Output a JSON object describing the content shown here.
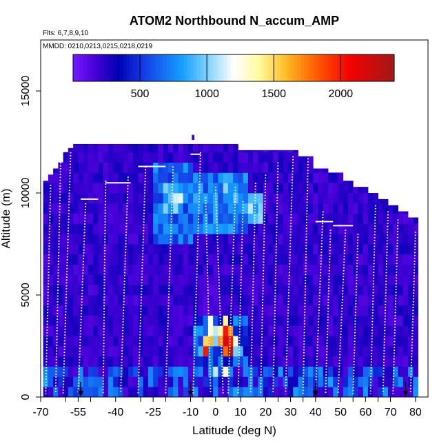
{
  "chart_data": {
    "type": "heatmap",
    "title": "ATOM2 Northbound N_accum_AMP",
    "flights_note": "Flts: 6,7,8,9,10",
    "dates_note": "MMDD: 0210,0213,0215,0218,0219",
    "xlabel": "Latitude (deg N)",
    "ylabel": "Altitude (m)",
    "xlim": [
      -70,
      85
    ],
    "ylim": [
      0,
      17500
    ],
    "x_ticks": [
      {
        "value": -70,
        "label": "-70"
      },
      {
        "value": -60,
        "label": ""
      },
      {
        "value": -55,
        "label": "-55"
      },
      {
        "value": -50,
        "label": ""
      },
      {
        "value": -40,
        "label": "-40"
      },
      {
        "value": -30,
        "label": ""
      },
      {
        "value": -25,
        "label": "-25"
      },
      {
        "value": -20,
        "label": ""
      },
      {
        "value": -10,
        "label": "-10"
      },
      {
        "value": -5,
        "label": ""
      },
      {
        "value": 0,
        "label": "0"
      },
      {
        "value": 5,
        "label": ""
      },
      {
        "value": 10,
        "label": "10"
      },
      {
        "value": 20,
        "label": "20"
      },
      {
        "value": 25,
        "label": ""
      },
      {
        "value": 30,
        "label": "30"
      },
      {
        "value": 35,
        "label": ""
      },
      {
        "value": 40,
        "label": "40"
      },
      {
        "value": 50,
        "label": "50"
      },
      {
        "value": 55,
        "label": ""
      },
      {
        "value": 60,
        "label": "60"
      },
      {
        "value": 65,
        "label": ""
      },
      {
        "value": 70,
        "label": "70"
      },
      {
        "value": 80,
        "label": "80"
      }
    ],
    "y_ticks": [
      0,
      5000,
      10000,
      15000
    ],
    "colorbar": {
      "min": 0,
      "max": 2400,
      "ticks": [
        500,
        1000,
        1500,
        2000
      ]
    },
    "lat_bins": [
      -68,
      -66,
      -64,
      -62,
      -60,
      -58,
      -56,
      -54,
      -52,
      -50,
      -48,
      -46,
      -44,
      -42,
      -40,
      -38,
      -36,
      -34,
      -32,
      -30,
      -28,
      -26,
      -24,
      -22,
      -20,
      -18,
      -16,
      -14,
      -12,
      -10,
      -8,
      -6,
      -4,
      -2,
      0,
      2,
      4,
      6,
      8,
      10,
      12,
      14,
      16,
      18,
      20,
      22,
      24,
      26,
      28,
      30,
      32,
      34,
      36,
      38,
      40,
      42,
      44,
      46,
      48,
      50,
      52,
      54,
      56,
      58,
      60,
      62,
      64,
      66,
      68,
      70,
      72,
      74,
      76,
      78,
      80
    ],
    "lat_bin_width": 2,
    "column_tops_m": [
      10600,
      10900,
      11200,
      11500,
      12000,
      12200,
      12400,
      12400,
      12400,
      12400,
      12400,
      12400,
      12400,
      12400,
      12400,
      12400,
      12400,
      12400,
      12400,
      12400,
      12400,
      12400,
      12400,
      12400,
      12400,
      12400,
      12400,
      12400,
      12400,
      12400,
      12400,
      12400,
      12400,
      12400,
      12400,
      12400,
      12400,
      12400,
      12400,
      12100,
      12100,
      12100,
      12100,
      12100,
      12100,
      12100,
      12100,
      12100,
      12100,
      12100,
      12100,
      11800,
      11800,
      11800,
      11200,
      11200,
      11200,
      11000,
      11000,
      11000,
      10600,
      10600,
      10300,
      10300,
      10300,
      10000,
      10000,
      9700,
      9700,
      9400,
      9400,
      9100,
      9100,
      8800,
      8800
    ],
    "altitude_bin_m": 500,
    "cell_values_note": "base background N_accum_AMP ~ 100-300; tropical upper troposphere (lat -25 to 15, alt 8-11.5 km) ~ 500-1100; boundary layer blues (0-1.5 km) ~ 500-800",
    "hotspots": [
      {
        "lat": -4,
        "alt_m": 2500,
        "value": 1500
      },
      {
        "lat": -4,
        "alt_m": 2000,
        "value": 2000
      },
      {
        "lat": -2,
        "alt_m": 3000,
        "value": 1300
      },
      {
        "lat": -2,
        "alt_m": 2500,
        "value": 1600
      },
      {
        "lat": -2,
        "alt_m": 3500,
        "value": 1200
      },
      {
        "lat": 0,
        "alt_m": 3000,
        "value": 1100
      },
      {
        "lat": 0,
        "alt_m": 2500,
        "value": 1000
      },
      {
        "lat": 2,
        "alt_m": 2500,
        "value": 1700
      },
      {
        "lat": 2,
        "alt_m": 3000,
        "value": 1400
      },
      {
        "lat": 4,
        "alt_m": 2000,
        "value": 1800
      },
      {
        "lat": 4,
        "alt_m": 2500,
        "value": 2200
      },
      {
        "lat": 4,
        "alt_m": 3000,
        "value": 2000
      },
      {
        "lat": 4,
        "alt_m": 3500,
        "value": 1400
      },
      {
        "lat": 6,
        "alt_m": 2000,
        "value": 2300
      },
      {
        "lat": 6,
        "alt_m": 2500,
        "value": 2000
      },
      {
        "lat": 6,
        "alt_m": 3000,
        "value": 1700
      },
      {
        "lat": 8,
        "alt_m": 2500,
        "value": 1300
      },
      {
        "lat": 8,
        "alt_m": 2000,
        "value": 1000
      },
      {
        "lat": 0,
        "alt_m": 1000,
        "value": 1100
      },
      {
        "lat": 4,
        "alt_m": 1000,
        "value": 1300
      },
      {
        "lat": 10,
        "alt_m": 2000,
        "value": 900
      },
      {
        "lat": -6,
        "alt_m": 2000,
        "value": 900
      },
      {
        "lat": -6,
        "alt_m": 3000,
        "value": 800
      }
    ],
    "upper_patches": [
      {
        "lat_from": -24,
        "lat_to": -10,
        "alt_from": 7500,
        "alt_to": 11500,
        "value": 650
      },
      {
        "lat_from": -8,
        "lat_to": 12,
        "alt_from": 8000,
        "alt_to": 11000,
        "value": 700
      },
      {
        "lat_from": 14,
        "lat_to": 18,
        "alt_from": 8500,
        "alt_to": 10000,
        "value": 1000
      },
      {
        "lat_from": -20,
        "lat_to": -14,
        "alt_from": 9000,
        "alt_to": 10500,
        "value": 950
      },
      {
        "lat_from": 4,
        "lat_to": 10,
        "alt_from": 9500,
        "alt_to": 10500,
        "value": 850
      },
      {
        "lat_from": -6,
        "lat_to": 0,
        "alt_from": 4000,
        "alt_to": 6000,
        "value": 150
      }
    ],
    "profiles": [
      {
        "lat_top": -66,
        "lat_bottom": -68,
        "alt_top": 10400
      },
      {
        "lat_top": -62,
        "lat_bottom": -64,
        "alt_top": 11500
      },
      {
        "lat_top": -58,
        "lat_bottom": -61,
        "alt_top": 12000
      },
      {
        "lat_top": -52,
        "lat_bottom": -55,
        "alt_top": 9500
      },
      {
        "lat_top": -44,
        "lat_bottom": -45,
        "alt_top": 10600
      },
      {
        "lat_top": -35,
        "lat_bottom": -38,
        "alt_top": 10800
      },
      {
        "lat_top": -28,
        "lat_bottom": -31,
        "alt_top": 11300
      },
      {
        "lat_top": -17,
        "lat_bottom": -20,
        "alt_top": 11300
      },
      {
        "lat_top": -6,
        "lat_bottom": -9,
        "alt_top": 12000
      },
      {
        "lat_top": -4,
        "lat_bottom": -2,
        "alt_top": 9800
      },
      {
        "lat_top": 0,
        "lat_bottom": 3,
        "alt_top": 10300
      },
      {
        "lat_top": 8,
        "lat_bottom": 5,
        "alt_top": 10300
      },
      {
        "lat_top": 11,
        "lat_bottom": 9,
        "alt_top": 9600
      },
      {
        "lat_top": 16,
        "lat_bottom": 14,
        "alt_top": 10500
      },
      {
        "lat_top": 20,
        "lat_bottom": 18,
        "alt_top": 10900
      },
      {
        "lat_top": 25,
        "lat_bottom": 23,
        "alt_top": 11500
      },
      {
        "lat_top": 31,
        "lat_bottom": 28,
        "alt_top": 11800
      },
      {
        "lat_top": 37,
        "lat_bottom": 35,
        "alt_top": 11700
      },
      {
        "lat_top": 43,
        "lat_bottom": 40,
        "alt_top": 9100
      },
      {
        "lat_top": 46,
        "lat_bottom": 44,
        "alt_top": 8200
      },
      {
        "lat_top": 52,
        "lat_bottom": 49,
        "alt_top": 8200
      },
      {
        "lat_top": 57,
        "lat_bottom": 55,
        "alt_top": 8000
      },
      {
        "lat_top": 64,
        "lat_bottom": 62,
        "alt_top": 9400
      },
      {
        "lat_top": 69,
        "lat_bottom": 67,
        "alt_top": 9100
      },
      {
        "lat_top": 73,
        "lat_bottom": 71,
        "alt_top": 8700
      },
      {
        "lat_top": 80,
        "lat_bottom": 78,
        "alt_top": 8100
      }
    ],
    "level_legs": [
      {
        "lat_from": -54,
        "lat_to": -47,
        "alt_m": 9700
      },
      {
        "lat_from": -44,
        "lat_to": -34,
        "alt_m": 10500
      },
      {
        "lat_from": -31,
        "lat_to": -20,
        "alt_m": 11300
      },
      {
        "lat_from": -10,
        "lat_to": -6,
        "alt_m": 11900
      },
      {
        "lat_from": 40,
        "lat_to": 47,
        "alt_m": 8600
      },
      {
        "lat_from": 47,
        "lat_to": 55,
        "alt_m": 8400
      }
    ],
    "arrow_marker_lats": [
      -54,
      -10,
      40,
      76
    ]
  }
}
